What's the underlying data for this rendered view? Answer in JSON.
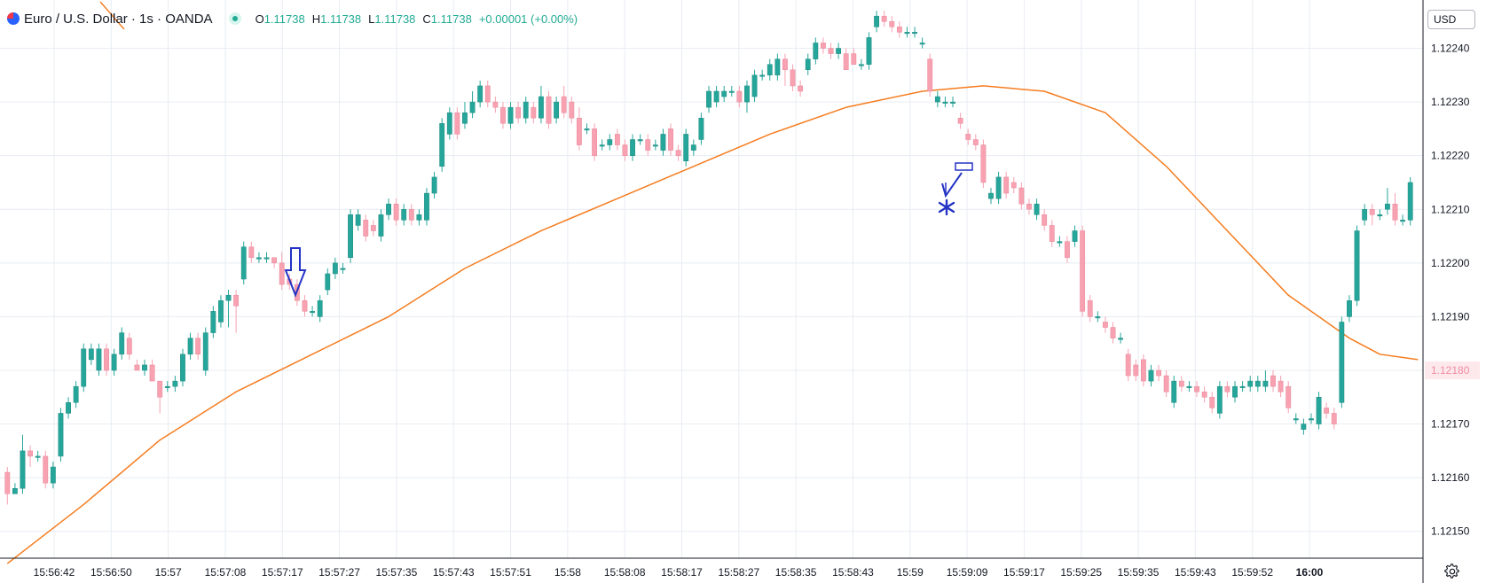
{
  "header": {
    "symbol_title": "Euro / U.S. Dollar · 1s · OANDA",
    "ohlc": [
      {
        "label": "O",
        "value": "1.11738"
      },
      {
        "label": "H",
        "value": "1.11738"
      },
      {
        "label": "L",
        "value": "1.11738"
      },
      {
        "label": "C",
        "value": "1.11738"
      }
    ],
    "change": "+0.00001 (+0.00%)"
  },
  "currency_button": "USD",
  "colors": {
    "up": "#26a69a",
    "down": "#f7a1b1",
    "ma": "#f57c1f",
    "grid": "#e8ecf2",
    "annotation": "#2433c4"
  },
  "icons": {
    "symbol": "currency-flag-icon",
    "status": "market-status-dot-icon",
    "settings": "gear-icon"
  },
  "chart_data": {
    "type": "candlestick",
    "y_axis": {
      "ticks": [
        "1.12240",
        "1.12230",
        "1.12220",
        "1.12210",
        "1.12200",
        "1.12190",
        "1.12180",
        "1.12170",
        "1.12160",
        "1.12150"
      ],
      "range": [
        1.12145,
        1.12249
      ],
      "price_label": "1.12180"
    },
    "x_axis": {
      "ticks": [
        "15:56:42",
        "15:56:50",
        "15:57",
        "15:57:08",
        "15:57:17",
        "15:57:27",
        "15:57:35",
        "15:57:43",
        "15:57:51",
        "15:58",
        "15:58:08",
        "15:58:17",
        "15:58:27",
        "15:58:35",
        "15:58:43",
        "15:59",
        "15:59:09",
        "15:59:17",
        "15:59:25",
        "15:59:35",
        "15:59:43",
        "15:59:52",
        "16:00"
      ],
      "bold": [
        "16:00"
      ]
    },
    "candles": [
      [
        1.12161,
        1.12157,
        1.12155,
        1.12162
      ],
      [
        1.12157,
        1.12158,
        1.12157,
        1.12159
      ],
      [
        1.12158,
        1.12165,
        1.12157,
        1.12168
      ],
      [
        1.12165,
        1.12164,
        1.12162,
        1.12166
      ],
      [
        1.12164,
        1.12164,
        1.12163,
        1.12165
      ],
      [
        1.12164,
        1.12159,
        1.12158,
        1.12165
      ],
      [
        1.12159,
        1.12162,
        1.12158,
        1.12163
      ],
      [
        1.12164,
        1.12172,
        1.12163,
        1.12173
      ],
      [
        1.12172,
        1.12174,
        1.12171,
        1.12175
      ],
      [
        1.12174,
        1.12177,
        1.12173,
        1.12178
      ],
      [
        1.12177,
        1.12184,
        1.12176,
        1.12185
      ],
      [
        1.12182,
        1.12184,
        1.12181,
        1.12185
      ],
      [
        1.1218,
        1.12184,
        1.12179,
        1.12185
      ],
      [
        1.12184,
        1.1218,
        1.12179,
        1.12185
      ],
      [
        1.1218,
        1.12183,
        1.12179,
        1.12184
      ],
      [
        1.12183,
        1.12187,
        1.12182,
        1.12188
      ],
      [
        1.12186,
        1.12183,
        1.12182,
        1.12187
      ],
      [
        1.12181,
        1.1218,
        1.1218,
        1.12182
      ],
      [
        1.1218,
        1.12181,
        1.12179,
        1.12182
      ],
      [
        1.12181,
        1.12178,
        1.12178,
        1.12182
      ],
      [
        1.12178,
        1.12175,
        1.12172,
        1.12178
      ],
      [
        1.12177,
        1.12177,
        1.12176,
        1.12178
      ],
      [
        1.12177,
        1.12178,
        1.12176,
        1.12179
      ],
      [
        1.12178,
        1.12183,
        1.12177,
        1.12184
      ],
      [
        1.12183,
        1.12186,
        1.12182,
        1.12187
      ],
      [
        1.12186,
        1.12183,
        1.12182,
        1.12187
      ],
      [
        1.1218,
        1.12187,
        1.12179,
        1.12188
      ],
      [
        1.12187,
        1.12191,
        1.12186,
        1.12192
      ],
      [
        1.12189,
        1.12193,
        1.12188,
        1.12194
      ],
      [
        1.12193,
        1.12194,
        1.12188,
        1.12195
      ],
      [
        1.12194,
        1.12192,
        1.12187,
        1.12195
      ],
      [
        1.12197,
        1.12203,
        1.12196,
        1.12204
      ],
      [
        1.12203,
        1.12201,
        1.122,
        1.12204
      ],
      [
        1.12201,
        1.12201,
        1.122,
        1.12202
      ],
      [
        1.12201,
        1.12201,
        1.122,
        1.12202
      ],
      [
        1.12201,
        1.122,
        1.12199,
        1.12201
      ],
      [
        1.122,
        1.12196,
        1.12195,
        1.12202
      ],
      [
        1.12197,
        1.12196,
        1.12195,
        1.12198
      ],
      [
        1.12196,
        1.12193,
        1.12192,
        1.12197
      ],
      [
        1.12193,
        1.12191,
        1.1219,
        1.12194
      ],
      [
        1.12191,
        1.12191,
        1.1219,
        1.12192
      ],
      [
        1.1219,
        1.12193,
        1.12189,
        1.12194
      ],
      [
        1.12195,
        1.12198,
        1.12194,
        1.12199
      ],
      [
        1.12198,
        1.122,
        1.12197,
        1.12201
      ],
      [
        1.12199,
        1.12199,
        1.12198,
        1.122
      ],
      [
        1.12201,
        1.12209,
        1.122,
        1.1221
      ],
      [
        1.12207,
        1.12209,
        1.12206,
        1.1221
      ],
      [
        1.12208,
        1.12205,
        1.12204,
        1.12209
      ],
      [
        1.12207,
        1.12206,
        1.12205,
        1.12208
      ],
      [
        1.12205,
        1.12209,
        1.12204,
        1.1221
      ],
      [
        1.12209,
        1.12211,
        1.12208,
        1.12212
      ],
      [
        1.12211,
        1.12208,
        1.12207,
        1.12212
      ],
      [
        1.12208,
        1.1221,
        1.12207,
        1.12211
      ],
      [
        1.1221,
        1.12208,
        1.12207,
        1.12211
      ],
      [
        1.12208,
        1.12209,
        1.12207,
        1.1221
      ],
      [
        1.12208,
        1.12213,
        1.12207,
        1.12214
      ],
      [
        1.12213,
        1.12216,
        1.12212,
        1.12217
      ],
      [
        1.12218,
        1.12226,
        1.12217,
        1.12227
      ],
      [
        1.12224,
        1.12228,
        1.12223,
        1.12229
      ],
      [
        1.12228,
        1.12224,
        1.12223,
        1.12229
      ],
      [
        1.12226,
        1.12228,
        1.12225,
        1.1223
      ],
      [
        1.12228,
        1.1223,
        1.12227,
        1.12232
      ],
      [
        1.1223,
        1.12233,
        1.12229,
        1.12234
      ],
      [
        1.12233,
        1.1223,
        1.12229,
        1.12234
      ],
      [
        1.1223,
        1.12229,
        1.12228,
        1.12231
      ],
      [
        1.12229,
        1.12226,
        1.12225,
        1.1223
      ],
      [
        1.12226,
        1.12229,
        1.12225,
        1.1223
      ],
      [
        1.12229,
        1.12227,
        1.12226,
        1.1223
      ],
      [
        1.12227,
        1.1223,
        1.12226,
        1.12231
      ],
      [
        1.12229,
        1.12227,
        1.12226,
        1.1223
      ],
      [
        1.12227,
        1.12231,
        1.12226,
        1.12233
      ],
      [
        1.12231,
        1.12226,
        1.12225,
        1.12232
      ],
      [
        1.12227,
        1.1223,
        1.12226,
        1.12231
      ],
      [
        1.12231,
        1.12228,
        1.12227,
        1.12233
      ],
      [
        1.1223,
        1.12227,
        1.12226,
        1.12231
      ],
      [
        1.12227,
        1.12222,
        1.12221,
        1.12229
      ],
      [
        1.12225,
        1.12225,
        1.12224,
        1.12226
      ],
      [
        1.12225,
        1.1222,
        1.12219,
        1.12226
      ],
      [
        1.12222,
        1.12222,
        1.12221,
        1.12223
      ],
      [
        1.12222,
        1.12223,
        1.12221,
        1.12224
      ],
      [
        1.12224,
        1.12222,
        1.12221,
        1.12225
      ],
      [
        1.12222,
        1.1222,
        1.12219,
        1.12223
      ],
      [
        1.1222,
        1.12223,
        1.12219,
        1.12224
      ],
      [
        1.12223,
        1.12223,
        1.12222,
        1.12224
      ],
      [
        1.12223,
        1.12221,
        1.1222,
        1.12224
      ],
      [
        1.12222,
        1.12222,
        1.12221,
        1.12223
      ],
      [
        1.12221,
        1.12224,
        1.1222,
        1.12225
      ],
      [
        1.12225,
        1.12221,
        1.1222,
        1.12226
      ],
      [
        1.12221,
        1.1222,
        1.12219,
        1.12222
      ],
      [
        1.12219,
        1.12224,
        1.12218,
        1.12225
      ],
      [
        1.12221,
        1.12222,
        1.1222,
        1.12223
      ],
      [
        1.12223,
        1.12227,
        1.12222,
        1.12228
      ],
      [
        1.12229,
        1.12232,
        1.12228,
        1.12233
      ],
      [
        1.1223,
        1.12232,
        1.12229,
        1.12233
      ],
      [
        1.12231,
        1.12232,
        1.1223,
        1.12233
      ],
      [
        1.12232,
        1.12232,
        1.12231,
        1.12233
      ],
      [
        1.12232,
        1.1223,
        1.12229,
        1.12233
      ],
      [
        1.1223,
        1.12233,
        1.12228,
        1.12234
      ],
      [
        1.12231,
        1.12235,
        1.1223,
        1.12236
      ],
      [
        1.12235,
        1.12235,
        1.12234,
        1.12236
      ],
      [
        1.12235,
        1.12237,
        1.12234,
        1.12238
      ],
      [
        1.12235,
        1.12238,
        1.12234,
        1.12239
      ],
      [
        1.12238,
        1.12236,
        1.12233,
        1.12239
      ],
      [
        1.12236,
        1.12233,
        1.12232,
        1.12237
      ],
      [
        1.12233,
        1.12232,
        1.12231,
        1.12234
      ],
      [
        1.12236,
        1.12238,
        1.12235,
        1.12239
      ],
      [
        1.12238,
        1.12241,
        1.12237,
        1.12242
      ],
      [
        1.12241,
        1.1224,
        1.12239,
        1.12242
      ],
      [
        1.1224,
        1.12239,
        1.12238,
        1.12241
      ],
      [
        1.12239,
        1.1224,
        1.12238,
        1.12241
      ],
      [
        1.12239,
        1.12236,
        1.12236,
        1.1224
      ],
      [
        1.12239,
        1.12237,
        1.12237,
        1.1224
      ],
      [
        1.12237,
        1.12237,
        1.12236,
        1.12238
      ],
      [
        1.12237,
        1.12242,
        1.12236,
        1.12243
      ],
      [
        1.12244,
        1.12246,
        1.12243,
        1.12247
      ],
      [
        1.12246,
        1.12245,
        1.12244,
        1.12247
      ],
      [
        1.12245,
        1.12244,
        1.12243,
        1.12246
      ],
      [
        1.12244,
        1.12243,
        1.12242,
        1.12245
      ],
      [
        1.12243,
        1.12243,
        1.12242,
        1.12244
      ],
      [
        1.12243,
        1.12243,
        1.12242,
        1.12244
      ],
      [
        1.12241,
        1.12241,
        1.1224,
        1.12242
      ],
      [
        1.12238,
        1.12232,
        1.12231,
        1.12239
      ],
      [
        1.1223,
        1.12231,
        1.12229,
        1.12232
      ],
      [
        1.1223,
        1.1223,
        1.12229,
        1.12231
      ],
      [
        1.1223,
        1.1223,
        1.12229,
        1.12231
      ],
      [
        1.12227,
        1.12226,
        1.12225,
        1.12228
      ],
      [
        1.12224,
        1.12223,
        1.12222,
        1.12225
      ],
      [
        1.12223,
        1.12222,
        1.12221,
        1.12224
      ],
      [
        1.12222,
        1.12215,
        1.12214,
        1.12223
      ],
      [
        1.12212,
        1.12213,
        1.12211,
        1.12214
      ],
      [
        1.12212,
        1.12216,
        1.12211,
        1.12217
      ],
      [
        1.12216,
        1.12213,
        1.12212,
        1.12217
      ],
      [
        1.12215,
        1.12214,
        1.12213,
        1.12216
      ],
      [
        1.12214,
        1.12211,
        1.1221,
        1.12215
      ],
      [
        1.12211,
        1.1221,
        1.12209,
        1.12212
      ],
      [
        1.12209,
        1.12211,
        1.12208,
        1.12212
      ],
      [
        1.12209,
        1.12207,
        1.12206,
        1.1221
      ],
      [
        1.12207,
        1.12204,
        1.12203,
        1.12208
      ],
      [
        1.12204,
        1.12204,
        1.12203,
        1.12205
      ],
      [
        1.12204,
        1.12201,
        1.122,
        1.12205
      ],
      [
        1.12204,
        1.12206,
        1.12203,
        1.12207
      ],
      [
        1.12206,
        1.12191,
        1.1219,
        1.12207
      ],
      [
        1.12193,
        1.1219,
        1.12189,
        1.12194
      ],
      [
        1.1219,
        1.1219,
        1.12189,
        1.12191
      ],
      [
        1.12189,
        1.12188,
        1.12187,
        1.1219
      ],
      [
        1.12188,
        1.12186,
        1.12185,
        1.12189
      ],
      [
        1.12186,
        1.12186,
        1.12185,
        1.12187
      ],
      [
        1.12183,
        1.12179,
        1.12178,
        1.12184
      ],
      [
        1.12181,
        1.12179,
        1.12178,
        1.12182
      ],
      [
        1.12182,
        1.12178,
        1.12177,
        1.12183
      ],
      [
        1.12178,
        1.1218,
        1.12177,
        1.12181
      ],
      [
        1.1218,
        1.12179,
        1.12178,
        1.12181
      ],
      [
        1.12179,
        1.12176,
        1.12175,
        1.1218
      ],
      [
        1.12174,
        1.12178,
        1.12173,
        1.12179
      ],
      [
        1.12178,
        1.12177,
        1.12176,
        1.12179
      ],
      [
        1.12177,
        1.12177,
        1.12176,
        1.12178
      ],
      [
        1.12177,
        1.12176,
        1.12175,
        1.12178
      ],
      [
        1.12176,
        1.12175,
        1.12174,
        1.12177
      ],
      [
        1.12175,
        1.12173,
        1.12172,
        1.12176
      ],
      [
        1.12172,
        1.12177,
        1.12171,
        1.12178
      ],
      [
        1.12177,
        1.12176,
        1.12175,
        1.12178
      ],
      [
        1.12175,
        1.12177,
        1.12174,
        1.12178
      ],
      [
        1.12177,
        1.12177,
        1.12176,
        1.12178
      ],
      [
        1.12177,
        1.12178,
        1.12176,
        1.12179
      ],
      [
        1.12177,
        1.12178,
        1.12176,
        1.12179
      ],
      [
        1.12177,
        1.12178,
        1.12176,
        1.1218
      ],
      [
        1.12179,
        1.12177,
        1.12176,
        1.1218
      ],
      [
        1.12178,
        1.12176,
        1.12175,
        1.12179
      ],
      [
        1.12177,
        1.12173,
        1.12172,
        1.12178
      ],
      [
        1.12171,
        1.12171,
        1.1217,
        1.12172
      ],
      [
        1.12169,
        1.1217,
        1.12168,
        1.12171
      ],
      [
        1.12171,
        1.12171,
        1.1217,
        1.12172
      ],
      [
        1.1217,
        1.12175,
        1.12169,
        1.12176
      ],
      [
        1.12173,
        1.12172,
        1.12171,
        1.12174
      ],
      [
        1.12172,
        1.1217,
        1.12169,
        1.12173
      ],
      [
        1.12174,
        1.12189,
        1.12173,
        1.1219
      ],
      [
        1.1219,
        1.12193,
        1.12189,
        1.12194
      ],
      [
        1.12193,
        1.12206,
        1.12192,
        1.12207
      ],
      [
        1.12208,
        1.1221,
        1.12207,
        1.12211
      ],
      [
        1.1221,
        1.12209,
        1.12207,
        1.12211
      ],
      [
        1.12209,
        1.12209,
        1.12208,
        1.1221
      ],
      [
        1.1221,
        1.12211,
        1.12209,
        1.12214
      ],
      [
        1.12211,
        1.12208,
        1.12207,
        1.12213
      ],
      [
        1.12208,
        1.12208,
        1.12207,
        1.12209
      ],
      [
        1.12208,
        1.12215,
        1.12207,
        1.12216
      ]
    ],
    "moving_average": [
      [
        0,
        1.12144
      ],
      [
        10,
        1.12155
      ],
      [
        20,
        1.12167
      ],
      [
        30,
        1.12176
      ],
      [
        40,
        1.12183
      ],
      [
        50,
        1.1219
      ],
      [
        60,
        1.12199
      ],
      [
        70,
        1.12206
      ],
      [
        80,
        1.12212
      ],
      [
        90,
        1.12218
      ],
      [
        100,
        1.12224
      ],
      [
        110,
        1.12229
      ],
      [
        120,
        1.12232
      ],
      [
        128,
        1.12233
      ],
      [
        136,
        1.12232
      ],
      [
        144,
        1.12228
      ],
      [
        152,
        1.12218
      ],
      [
        160,
        1.12206
      ],
      [
        168,
        1.12194
      ],
      [
        176,
        1.12186
      ],
      [
        180,
        1.12183
      ],
      [
        185,
        1.12182
      ]
    ]
  }
}
